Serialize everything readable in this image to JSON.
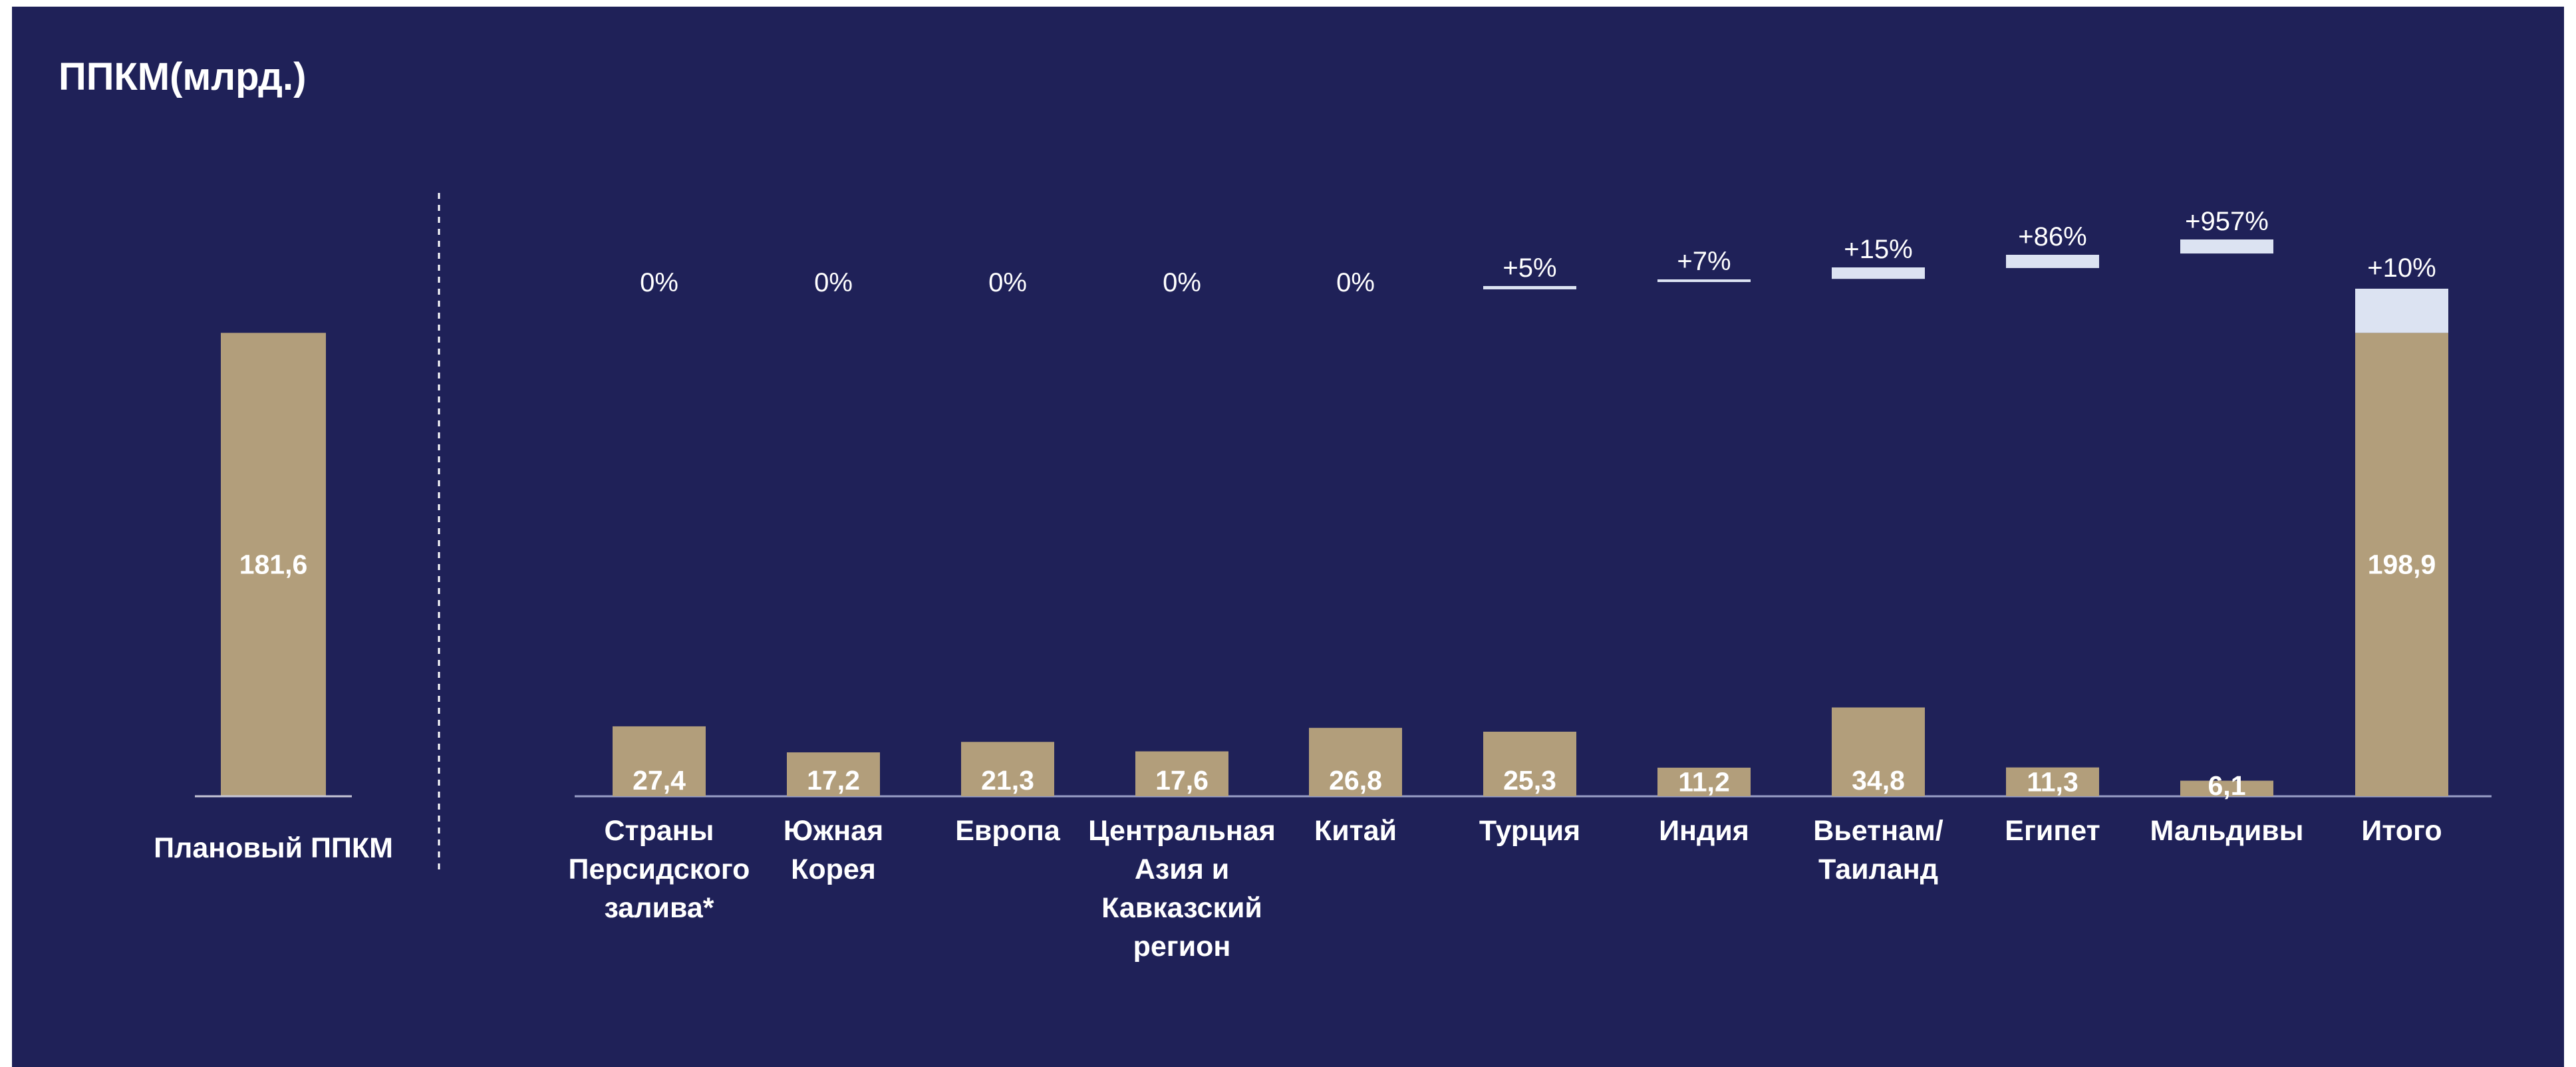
{
  "title": "ППКМ(млрд.)",
  "colors": {
    "background": "#1f2158",
    "bar": "#b29e7b",
    "increase": "#dce3f2",
    "text": "#ffffff"
  },
  "chart_data": {
    "type": "bar",
    "title": "ППКМ(млрд.)",
    "plan": {
      "label": "Плановый ППКМ",
      "value": 181.6,
      "value_label": "181,6"
    },
    "categories": [
      {
        "label": [
          "Страны",
          "Персидского",
          "залива*"
        ],
        "value": 27.4,
        "value_label": "27,4",
        "increase": 0,
        "change_label": "0%"
      },
      {
        "label": [
          "Южная",
          "Корея"
        ],
        "value": 17.2,
        "value_label": "17,2",
        "increase": 0,
        "change_label": "0%"
      },
      {
        "label": [
          "Европа"
        ],
        "value": 21.3,
        "value_label": "21,3",
        "increase": 0,
        "change_label": "0%"
      },
      {
        "label": [
          "Центральная",
          "Азия и",
          "Кавказский",
          "регион"
        ],
        "value": 17.6,
        "value_label": "17,6",
        "increase": 0,
        "change_label": "0%"
      },
      {
        "label": [
          "Китай"
        ],
        "value": 26.8,
        "value_label": "26,8",
        "increase": 0,
        "change_label": "0%"
      },
      {
        "label": [
          "Турция"
        ],
        "value": 25.3,
        "value_label": "25,3",
        "increase": 1.3,
        "change_label": "+5%"
      },
      {
        "label": [
          "Индия"
        ],
        "value": 11.2,
        "value_label": "11,2",
        "increase": 0.8,
        "change_label": "+7%"
      },
      {
        "label": [
          "Вьетнам/",
          "Таиланд"
        ],
        "value": 34.8,
        "value_label": "34,8",
        "increase": 4.5,
        "change_label": "+15%"
      },
      {
        "label": [
          "Египет"
        ],
        "value": 11.3,
        "value_label": "11,3",
        "increase": 5.2,
        "change_label": "+86%"
      },
      {
        "label": [
          "Мальдивы"
        ],
        "value": 6.1,
        "value_label": "6,1",
        "increase": 5.5,
        "change_label": "+957%"
      }
    ],
    "total": {
      "label": [
        "Итого"
      ],
      "base": 181.6,
      "value": 198.9,
      "value_label": "198,9",
      "change_label": "+10%"
    },
    "ylim": [
      0,
      210
    ]
  }
}
